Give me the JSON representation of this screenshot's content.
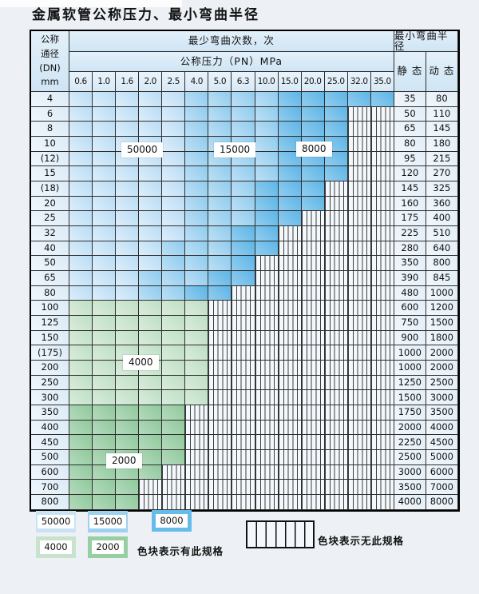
{
  "title": "金属软管公称压力、最小弯曲半径",
  "header": {
    "dn_lines": [
      "公称",
      "通径",
      "(DN)",
      "mm"
    ],
    "bend_cycles": "最少弯曲次数，次",
    "pressure": "公称压力（PN）MPa",
    "min_radius": "最小弯曲半径",
    "static_label": "静 态",
    "dynamic_label": "动 态",
    "pressures": [
      "0.6",
      "1.0",
      "1.6",
      "2.0",
      "2.5",
      "4.0",
      "5.0",
      "6.3",
      "10.0",
      "15.0",
      "20.0",
      "25.0",
      "32.0",
      "35.0"
    ]
  },
  "zone_labels": [
    "50000",
    "15000",
    "8000",
    "4000",
    "2000"
  ],
  "rows": [
    {
      "dn": "4",
      "static": "35",
      "dynamic": "80",
      "fam": "b",
      "end": 13,
      "ms": 5,
      "ds": 9
    },
    {
      "dn": "6",
      "static": "50",
      "dynamic": "110",
      "fam": "b",
      "end": 11,
      "ms": 5,
      "ds": 9
    },
    {
      "dn": "8",
      "static": "65",
      "dynamic": "145",
      "fam": "b",
      "end": 11,
      "ms": 5,
      "ds": 9
    },
    {
      "dn": "10",
      "static": "80",
      "dynamic": "180",
      "fam": "b",
      "end": 11,
      "ms": 5,
      "ds": 9
    },
    {
      "dn": "(12)",
      "static": "95",
      "dynamic": "215",
      "fam": "b",
      "end": 11,
      "ms": 5,
      "ds": 9
    },
    {
      "dn": "15",
      "static": "120",
      "dynamic": "270",
      "fam": "b",
      "end": 11,
      "ms": 5,
      "ds": 9
    },
    {
      "dn": "(18)",
      "static": "145",
      "dynamic": "325",
      "fam": "b",
      "end": 10,
      "ms": 5,
      "ds": 8
    },
    {
      "dn": "20",
      "static": "160",
      "dynamic": "360",
      "fam": "b",
      "end": 10,
      "ms": 5,
      "ds": 8
    },
    {
      "dn": "25",
      "static": "175",
      "dynamic": "400",
      "fam": "b",
      "end": 9,
      "ms": 5,
      "ds": 8
    },
    {
      "dn": "32",
      "static": "225",
      "dynamic": "510",
      "fam": "b",
      "end": 8,
      "ms": 5,
      "ds": 7
    },
    {
      "dn": "40",
      "static": "280",
      "dynamic": "640",
      "fam": "b",
      "end": 8,
      "ms": 4,
      "ds": 7
    },
    {
      "dn": "50",
      "static": "350",
      "dynamic": "800",
      "fam": "b",
      "end": 7,
      "ms": 4,
      "ds": 7
    },
    {
      "dn": "65",
      "static": "390",
      "dynamic": "845",
      "fam": "b",
      "end": 7,
      "ms": 3,
      "ds": 6
    },
    {
      "dn": "80",
      "static": "480",
      "dynamic": "1000",
      "fam": "b",
      "end": 6,
      "ms": 3,
      "ds": 5
    },
    {
      "dn": "100",
      "static": "600",
      "dynamic": "1200",
      "fam": "gl",
      "end": 5
    },
    {
      "dn": "125",
      "static": "750",
      "dynamic": "1500",
      "fam": "gl",
      "end": 5
    },
    {
      "dn": "150",
      "static": "900",
      "dynamic": "1800",
      "fam": "gl",
      "end": 5
    },
    {
      "dn": "(175)",
      "static": "1000",
      "dynamic": "2000",
      "fam": "gl",
      "end": 5
    },
    {
      "dn": "200",
      "static": "1000",
      "dynamic": "2000",
      "fam": "gl",
      "end": 5
    },
    {
      "dn": "250",
      "static": "1250",
      "dynamic": "2500",
      "fam": "gl",
      "end": 5
    },
    {
      "dn": "300",
      "static": "1500",
      "dynamic": "3000",
      "fam": "gl",
      "end": 5
    },
    {
      "dn": "350",
      "static": "1750",
      "dynamic": "3500",
      "fam": "gd",
      "end": 4
    },
    {
      "dn": "400",
      "static": "2000",
      "dynamic": "4000",
      "fam": "gd",
      "end": 4
    },
    {
      "dn": "450",
      "static": "2250",
      "dynamic": "4500",
      "fam": "gd",
      "end": 4
    },
    {
      "dn": "500",
      "static": "2500",
      "dynamic": "5000",
      "fam": "gd",
      "end": 4
    },
    {
      "dn": "600",
      "static": "3000",
      "dynamic": "6000",
      "fam": "gd",
      "end": 3
    },
    {
      "dn": "700",
      "static": "3500",
      "dynamic": "7000",
      "fam": "gd",
      "end": 2
    },
    {
      "dn": "800",
      "static": "4000",
      "dynamic": "8000",
      "fam": "gd",
      "end": 2
    }
  ],
  "legend": {
    "swatches": [
      {
        "label": "50000",
        "color": "#c9e3f5"
      },
      {
        "label": "15000",
        "color": "#9cd1ef"
      },
      {
        "label": "8000",
        "color": "#66bce9"
      },
      {
        "label": "4000",
        "color": "#c8e3cb"
      },
      {
        "label": "2000",
        "color": "#97cfa2"
      }
    ],
    "available_note": "色块表示有此规格",
    "unavailable_note": "色块表示无此规格"
  },
  "colors": {
    "blue_light": "#c9e3f5",
    "blue_medium": "#9cd1ef",
    "blue_dark": "#66bce9",
    "green_light": "#c8e3cb",
    "green_dark": "#97cfa2",
    "hatch_line": "#3c3c3c",
    "grid_line": "#2e2e2e",
    "header_bg": "#d7e9f6"
  }
}
